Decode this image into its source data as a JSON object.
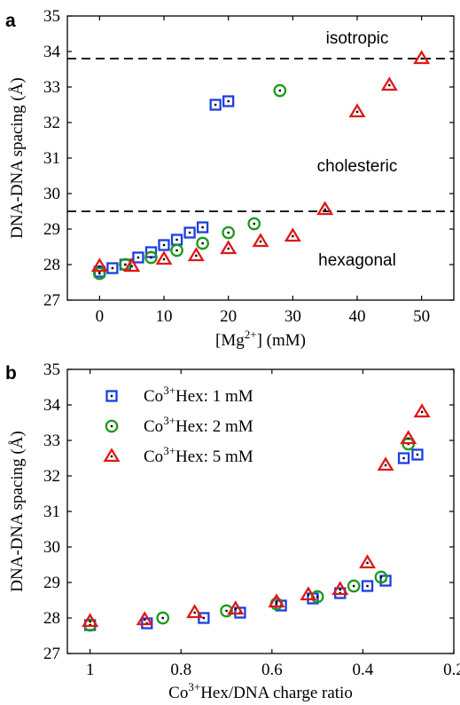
{
  "colors": {
    "s1": "#1a3fe0",
    "s2": "#1e9a1e",
    "s3": "#e01818"
  },
  "chart_data": [
    {
      "panel": "a",
      "type": "scatter",
      "xlabel": "[Mg",
      "xlabel_sup": "2+",
      "xlabel_post": "] (mM)",
      "ylabel": "DNA-DNA spacing (Å)",
      "xlim": [
        -5,
        55
      ],
      "ylim": [
        27,
        35
      ],
      "xticks": [
        0,
        10,
        20,
        30,
        40,
        50
      ],
      "yticks": [
        27,
        28,
        29,
        30,
        31,
        32,
        33,
        34,
        35
      ],
      "grid": false,
      "hlines": [
        33.8,
        29.5
      ],
      "region_labels": [
        {
          "text": "isotropic",
          "x": 40,
          "y": 34.4
        },
        {
          "text": "cholesteric",
          "x": 40,
          "y": 30.8
        },
        {
          "text": "hexagonal",
          "x": 40,
          "y": 28.15
        }
      ],
      "series": [
        {
          "marker": "square",
          "color": "#1a3fe0",
          "points": [
            [
              0,
              27.8
            ],
            [
              2,
              27.9
            ],
            [
              4,
              28.0
            ],
            [
              6,
              28.2
            ],
            [
              8,
              28.35
            ],
            [
              10,
              28.55
            ],
            [
              12,
              28.7
            ],
            [
              14,
              28.9
            ],
            [
              16,
              29.05
            ],
            [
              18,
              32.5
            ],
            [
              20,
              32.6
            ]
          ]
        },
        {
          "marker": "circle",
          "color": "#1e9a1e",
          "points": [
            [
              0,
              27.75
            ],
            [
              4,
              28.0
            ],
            [
              8,
              28.2
            ],
            [
              12,
              28.4
            ],
            [
              16,
              28.6
            ],
            [
              20,
              28.9
            ],
            [
              24,
              29.15
            ],
            [
              28,
              32.9
            ]
          ]
        },
        {
          "marker": "triangle",
          "color": "#e01818",
          "points": [
            [
              0,
              27.95
            ],
            [
              5,
              27.95
            ],
            [
              10,
              28.15
            ],
            [
              15,
              28.25
            ],
            [
              20,
              28.45
            ],
            [
              25,
              28.65
            ],
            [
              30,
              28.8
            ],
            [
              35,
              29.55
            ],
            [
              40,
              32.3
            ],
            [
              45,
              33.05
            ],
            [
              50,
              33.8
            ]
          ]
        }
      ]
    },
    {
      "panel": "b",
      "type": "scatter",
      "xlabel": "Co",
      "xlabel_sup": "3+",
      "xlabel_post": "Hex/DNA charge ratio",
      "ylabel": "DNA-DNA spacing (Å)",
      "xlim": [
        1.05,
        0.2
      ],
      "ylim": [
        27,
        35
      ],
      "xticks": [
        1,
        0.8,
        0.6,
        0.4,
        0.2
      ],
      "xtick_labels": [
        "1",
        "0.8",
        "0.6",
        "0.4",
        "0.2"
      ],
      "yticks": [
        27,
        28,
        29,
        30,
        31,
        32,
        33,
        34,
        35
      ],
      "grid": false,
      "legend_position": "top-left",
      "series": [
        {
          "name_pre": "Co",
          "name_sup": "3+",
          "name_post": "Hex: 1 mM",
          "marker": "square",
          "color": "#1a3fe0",
          "points": [
            [
              1.0,
              27.8
            ],
            [
              0.875,
              27.85
            ],
            [
              0.75,
              28.0
            ],
            [
              0.67,
              28.15
            ],
            [
              0.58,
              28.35
            ],
            [
              0.51,
              28.55
            ],
            [
              0.45,
              28.7
            ],
            [
              0.39,
              28.9
            ],
            [
              0.35,
              29.05
            ],
            [
              0.31,
              32.5
            ],
            [
              0.28,
              32.6
            ]
          ]
        },
        {
          "name_pre": "Co",
          "name_sup": "3+",
          "name_post": "Hex: 2 mM",
          "marker": "circle",
          "color": "#1e9a1e",
          "points": [
            [
              1.0,
              27.8
            ],
            [
              0.84,
              28.0
            ],
            [
              0.7,
              28.2
            ],
            [
              0.59,
              28.4
            ],
            [
              0.5,
              28.6
            ],
            [
              0.42,
              28.9
            ],
            [
              0.36,
              29.15
            ],
            [
              0.3,
              32.9
            ]
          ]
        },
        {
          "name_pre": "Co",
          "name_sup": "3+",
          "name_post": "Hex: 5 mM",
          "marker": "triangle",
          "color": "#e01818",
          "points": [
            [
              1.0,
              27.9
            ],
            [
              0.88,
              27.95
            ],
            [
              0.77,
              28.15
            ],
            [
              0.68,
              28.25
            ],
            [
              0.59,
              28.45
            ],
            [
              0.52,
              28.65
            ],
            [
              0.45,
              28.8
            ],
            [
              0.39,
              29.55
            ],
            [
              0.35,
              32.3
            ],
            [
              0.3,
              33.05
            ],
            [
              0.27,
              33.8
            ]
          ]
        }
      ]
    }
  ]
}
